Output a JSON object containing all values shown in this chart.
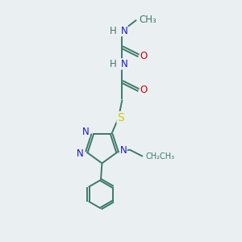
{
  "background_color": "#eaeff2",
  "atom_colors": {
    "C": "#3d7a6a",
    "N": "#1a1acc",
    "O": "#cc0000",
    "S": "#cccc00",
    "H": "#3d7a6a"
  },
  "bond_color": "#3d7a6a",
  "font_size": 8.5,
  "fig_size": [
    3.0,
    3.0
  ],
  "dpi": 100
}
